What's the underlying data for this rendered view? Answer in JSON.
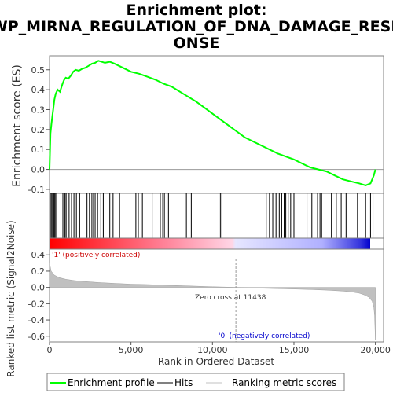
{
  "chart_data": {
    "type": "line",
    "title_lines": [
      "Enrichment plot:",
      "WP_MIRNA_REGULATION_OF_DNA_DAMAGE_RESP",
      "ONSE"
    ],
    "ylabel_top": "Enrichment score (ES)",
    "ylabel_bottom": "Ranked list metric (Signal2Noise)",
    "xlabel": "Rank in Ordered Dataset",
    "xlim": [
      0,
      20500
    ],
    "es_ylim": [
      -0.12,
      0.57
    ],
    "metric_ylim": [
      -0.67,
      0.47
    ],
    "x_ticks": [
      0,
      5000,
      10000,
      15000,
      20000
    ],
    "x_tick_labels": [
      "0",
      "5,000",
      "10,000",
      "15,000",
      "20,000"
    ],
    "es_ticks": [
      -0.1,
      0.0,
      0.1,
      0.2,
      0.3,
      0.4,
      0.5
    ],
    "es_tick_labels": [
      "-0.1",
      "0.0",
      "0.1",
      "0.2",
      "0.3",
      "0.4",
      "0.5"
    ],
    "metric_ticks": [
      -0.6,
      -0.4,
      -0.2,
      0.0,
      0.2,
      0.4
    ],
    "metric_tick_labels": [
      "-0.6",
      "-0.4",
      "-0.2",
      "0.0",
      "0.2",
      "0.4"
    ],
    "enrichment_profile": {
      "x": [
        0,
        60,
        120,
        180,
        240,
        300,
        380,
        500,
        640,
        800,
        900,
        1000,
        1150,
        1300,
        1450,
        1600,
        1800,
        2000,
        2200,
        2400,
        2600,
        2800,
        3000,
        3200,
        3400,
        3700,
        4000,
        4500,
        5000,
        5500,
        6000,
        6500,
        7000,
        7500,
        8000,
        9000,
        10000,
        11000,
        12000,
        13000,
        14000,
        15000,
        15500,
        16000,
        16500,
        17000,
        17500,
        18000,
        18500,
        19000,
        19400,
        19700,
        19900,
        20000
      ],
      "y": [
        0.0,
        0.18,
        0.23,
        0.27,
        0.31,
        0.35,
        0.38,
        0.4,
        0.39,
        0.43,
        0.45,
        0.46,
        0.455,
        0.47,
        0.49,
        0.5,
        0.495,
        0.505,
        0.51,
        0.52,
        0.53,
        0.535,
        0.545,
        0.54,
        0.535,
        0.54,
        0.53,
        0.51,
        0.49,
        0.48,
        0.465,
        0.45,
        0.43,
        0.415,
        0.39,
        0.34,
        0.28,
        0.22,
        0.16,
        0.12,
        0.08,
        0.05,
        0.03,
        0.01,
        0.0,
        -0.01,
        -0.03,
        -0.05,
        -0.06,
        -0.07,
        -0.08,
        -0.07,
        -0.03,
        0.0
      ]
    },
    "hits": [
      90,
      150,
      210,
      260,
      320,
      380,
      450,
      820,
      900,
      950,
      1020,
      1200,
      1350,
      1500,
      1650,
      1850,
      2050,
      2300,
      2450,
      2600,
      2700,
      2800,
      2950,
      3150,
      3300,
      3700,
      3900,
      4300,
      5300,
      5450,
      5700,
      6300,
      6800,
      6950,
      7050,
      7300,
      8400,
      8700,
      10400,
      10500,
      13300,
      13500,
      13700,
      13900,
      14100,
      14250,
      14400,
      14500,
      14650,
      14800,
      15000,
      15800,
      16100,
      16450,
      16600,
      16700,
      17300,
      17600,
      17900,
      18200,
      18900,
      19400,
      19700,
      19850
    ],
    "metric_curve": {
      "x": [
        0,
        100,
        300,
        600,
        1000,
        1500,
        2000,
        3000,
        4000,
        5000,
        6000,
        7000,
        8000,
        9000,
        10000,
        11000,
        11438,
        12000,
        13000,
        14000,
        15000,
        16000,
        17000,
        18000,
        18500,
        19000,
        19300,
        19600,
        19800,
        19900,
        19950,
        20000
      ],
      "y": [
        0.3,
        0.2,
        0.15,
        0.12,
        0.1,
        0.085,
        0.075,
        0.06,
        0.05,
        0.04,
        0.035,
        0.028,
        0.022,
        0.015,
        0.008,
        0.003,
        0.0,
        -0.004,
        -0.01,
        -0.015,
        -0.02,
        -0.026,
        -0.033,
        -0.045,
        -0.055,
        -0.07,
        -0.09,
        -0.12,
        -0.17,
        -0.24,
        -0.35,
        -0.65
      ]
    },
    "zero_cross_x": 11438,
    "annotations": {
      "positive": "'1' (positively correlated)",
      "negative": "'0' (negatively correlated)",
      "zero_cross": "Zero cross at 11438"
    },
    "legend": {
      "placement": "bottom",
      "items": [
        {
          "label": "Enrichment profile",
          "color": "#00ff00"
        },
        {
          "label": "Hits",
          "color": "#000000"
        },
        {
          "label": "Ranking metric scores",
          "color": "#c0c0c0"
        }
      ]
    },
    "colors": {
      "profile": "#00ff00",
      "hits": "#000000",
      "metric_fill": "#c0c0c0",
      "positive_label": "#cc0000",
      "negative_label": "#0000cc",
      "gradient_stops": [
        "#ff0000",
        "#ff9fb2",
        "#ffffff",
        "#b0b0ff",
        "#0000cc"
      ]
    }
  }
}
